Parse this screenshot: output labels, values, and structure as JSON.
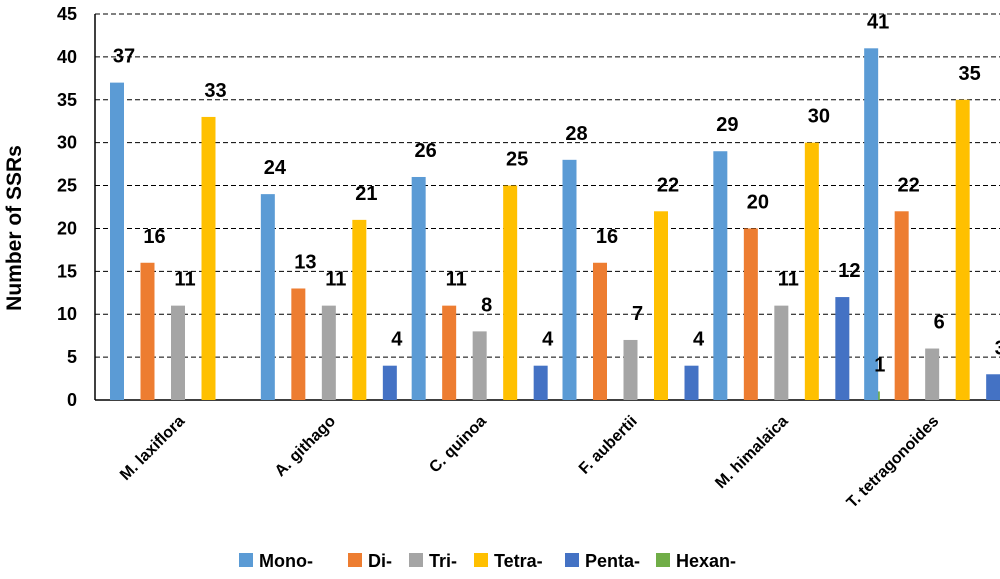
{
  "chart_data": {
    "type": "bar",
    "title": "",
    "xlabel": "",
    "ylabel": "Number of SSRs",
    "ylim": [
      0,
      45
    ],
    "ytick_step": 5,
    "grid": true,
    "legend_position": "bottom",
    "categories": [
      "M. laxiflora",
      "A. githago",
      "C. quinoa",
      "F. aubertii",
      "M. himalaica",
      "T. tetragonoides"
    ],
    "series": [
      {
        "name": "Mono-",
        "color": "#5b9bd5",
        "values": [
          37,
          24,
          26,
          28,
          29,
          41
        ]
      },
      {
        "name": "Di-",
        "color": "#ed7d31",
        "values": [
          16,
          13,
          11,
          16,
          20,
          22
        ]
      },
      {
        "name": "Tri-",
        "color": "#a5a5a5",
        "values": [
          11,
          11,
          8,
          7,
          11,
          6
        ]
      },
      {
        "name": "Tetra-",
        "color": "#ffc000",
        "values": [
          33,
          21,
          25,
          22,
          30,
          35
        ]
      },
      {
        "name": "Penta-",
        "color": "#4472c4",
        "values": [
          0,
          4,
          4,
          4,
          12,
          3
        ]
      },
      {
        "name": "Hexan-",
        "color": "#70ad47",
        "values": [
          0,
          0,
          0,
          0,
          1,
          0
        ]
      }
    ]
  }
}
